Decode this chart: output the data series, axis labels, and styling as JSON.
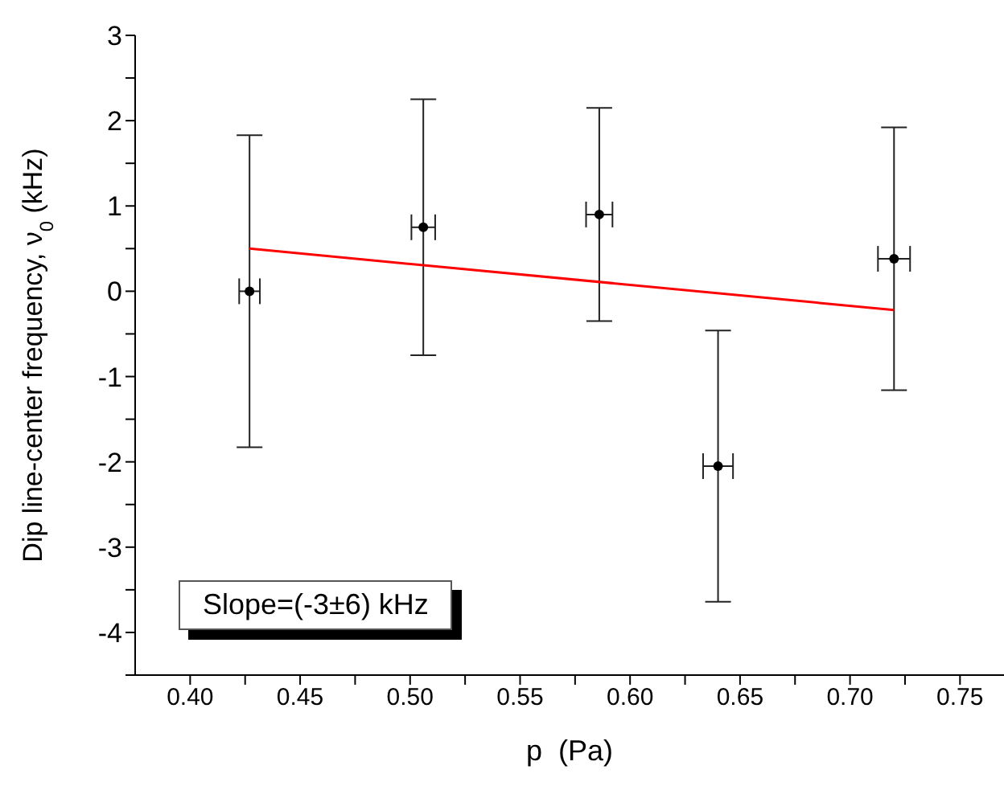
{
  "chart_data": {
    "type": "scatter",
    "xlabel": "p  (Pa)",
    "ylabel": "Dip line-center frequency, ν$_{0}$  (kHz)",
    "xlim": [
      0.375,
      0.77
    ],
    "ylim": [
      -4.5,
      3
    ],
    "xticks": [
      {
        "value": 0.4,
        "label": "0.40"
      },
      {
        "value": 0.425,
        "label": null
      },
      {
        "value": 0.45,
        "label": "0.45"
      },
      {
        "value": 0.475,
        "label": null
      },
      {
        "value": 0.5,
        "label": "0.50"
      },
      {
        "value": 0.525,
        "label": null
      },
      {
        "value": 0.55,
        "label": "0.55"
      },
      {
        "value": 0.575,
        "label": null
      },
      {
        "value": 0.6,
        "label": "0.60"
      },
      {
        "value": 0.625,
        "label": null
      },
      {
        "value": 0.65,
        "label": "0.65"
      },
      {
        "value": 0.675,
        "label": null
      },
      {
        "value": 0.7,
        "label": "0.70"
      },
      {
        "value": 0.725,
        "label": null
      },
      {
        "value": 0.75,
        "label": "0.75"
      }
    ],
    "yticks": [
      {
        "value": -4.5,
        "label": null
      },
      -4,
      {
        "value": -3.5,
        "label": null
      },
      -3,
      {
        "value": -2.5,
        "label": null
      },
      -2,
      {
        "value": -1.5,
        "label": null
      },
      -1,
      {
        "value": -0.5,
        "label": null
      },
      0,
      {
        "value": 0.5,
        "label": null
      },
      1,
      {
        "value": 1.5,
        "label": null
      },
      2,
      {
        "value": 2.5,
        "label": null
      },
      3
    ],
    "series": [
      {
        "marker": "circle",
        "color": "#000000",
        "x": [
          0.427,
          0.506,
          0.586,
          0.64,
          0.72
        ],
        "values": [
          0,
          0.75,
          0.9,
          -2.05,
          0.38
        ],
        "errors": [
          1.83,
          1.5,
          1.25,
          1.59,
          1.54
        ],
        "xerrors": [
          0.0047,
          0.0054,
          0.006,
          0.0068,
          0.0073
        ]
      },
      {
        "type": "line",
        "color": "#ff0000",
        "x": [
          0.427,
          0.72
        ],
        "values": [
          0.5,
          -0.22
        ]
      }
    ],
    "annotations": [
      "Slope=(-3±6) kHz"
    ]
  }
}
